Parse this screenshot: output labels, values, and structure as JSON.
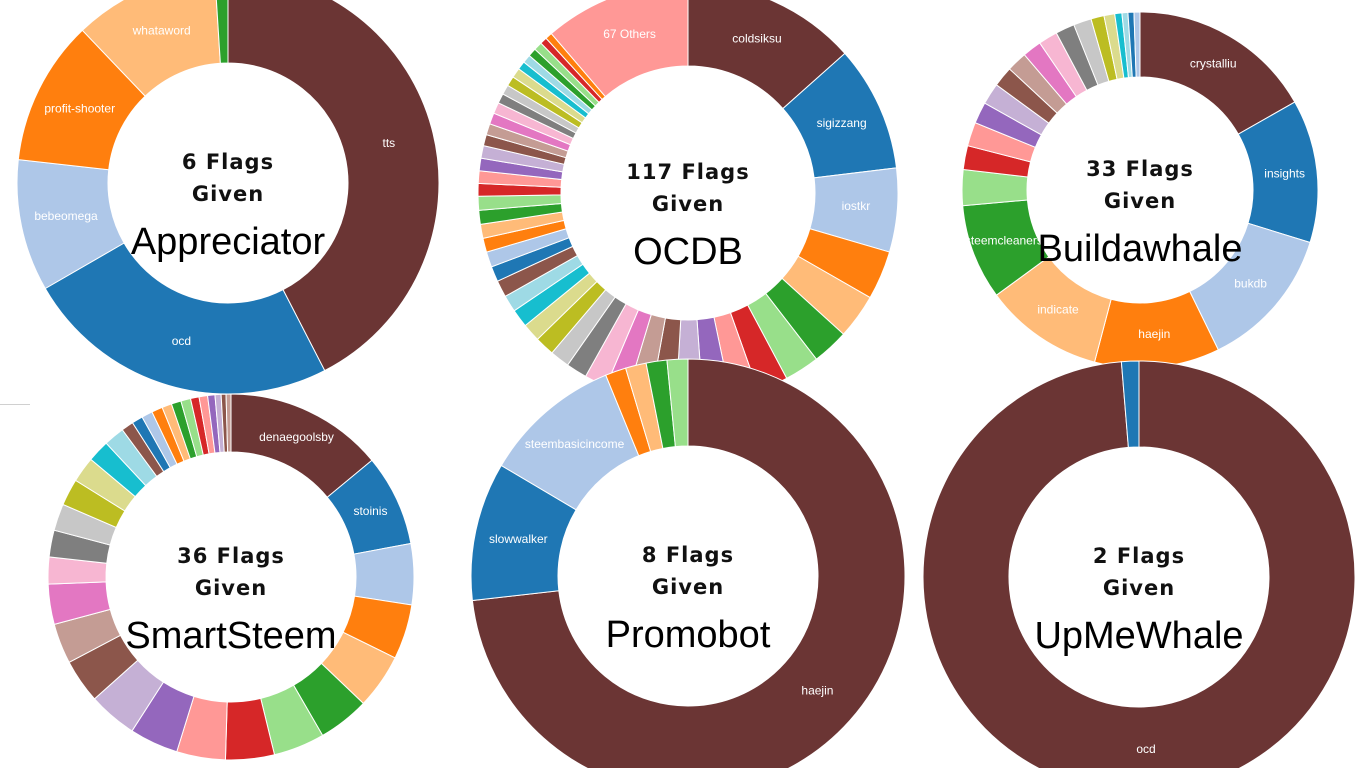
{
  "palette": [
    "#1f77b4",
    "#aec7e8",
    "#ff7f0e",
    "#ffbb78",
    "#2ca02c",
    "#98df8a",
    "#d62728",
    "#ff9896",
    "#9467bd",
    "#c5b0d5",
    "#8c564b",
    "#c49c94",
    "#e377c2",
    "#f7b6d2",
    "#7f7f7f",
    "#c7c7c7",
    "#bcbd22",
    "#dbdb8d",
    "#17becf",
    "#9edae5"
  ],
  "chart_data": [
    {
      "type": "pie",
      "id": "appreciator",
      "center_line1": "6 Flags",
      "center_line2": "Given",
      "center_name": "Appreciator",
      "slices": [
        {
          "label": "tts",
          "value": 42.0,
          "color": "#6b3534"
        },
        {
          "label": "ocd",
          "value": 24.0,
          "color": "#1f77b4"
        },
        {
          "label": "bebeomega",
          "value": 10.0,
          "color": "#aec7e8"
        },
        {
          "label": "profit-shooter",
          "value": 11.0,
          "color": "#ff7f0e"
        },
        {
          "label": "whataword",
          "value": 11.0,
          "color": "#ffbb78"
        },
        {
          "label": "",
          "value": 1.0,
          "color": "#2ca02c"
        }
      ]
    },
    {
      "type": "pie",
      "id": "ocdb",
      "center_line1": "117 Flags",
      "center_line2": "Given",
      "center_name": "OCDB",
      "slices": [
        {
          "label": "coldsiksu",
          "value": 12.5,
          "color": "#6b3534"
        },
        {
          "label": "sigizzang",
          "value": 9.0,
          "color": "#1f77b4"
        },
        {
          "label": "iostkr",
          "value": 6.0,
          "color": "#aec7e8"
        },
        {
          "label": "",
          "value": 3.5,
          "color": "#ff7f0e"
        },
        {
          "label": "",
          "value": 3.2,
          "color": "#ffbb78"
        },
        {
          "label": "",
          "value": 2.6,
          "color": "#2ca02c"
        },
        {
          "label": "",
          "value": 2.5,
          "color": "#98df8a"
        },
        {
          "label": "",
          "value": 2.2,
          "color": "#d62728"
        },
        {
          "label": "",
          "value": 2.0,
          "color": "#ff9896"
        },
        {
          "label": "",
          "value": 2.0,
          "color": "#9467bd"
        },
        {
          "label": "",
          "value": 1.9,
          "color": "#c5b0d5"
        },
        {
          "label": "",
          "value": 1.8,
          "color": "#8c564b"
        },
        {
          "label": "",
          "value": 1.7,
          "color": "#c49c94"
        },
        {
          "label": "",
          "value": 1.6,
          "color": "#e377c2"
        },
        {
          "label": "",
          "value": 1.6,
          "color": "#f7b6d2"
        },
        {
          "label": "",
          "value": 1.5,
          "color": "#7f7f7f"
        },
        {
          "label": "",
          "value": 1.4,
          "color": "#c7c7c7"
        },
        {
          "label": "",
          "value": 1.4,
          "color": "#bcbd22"
        },
        {
          "label": "",
          "value": 1.3,
          "color": "#dbdb8d"
        },
        {
          "label": "",
          "value": 1.3,
          "color": "#17becf"
        },
        {
          "label": "",
          "value": 1.2,
          "color": "#9edae5"
        },
        {
          "label": "",
          "value": 1.2,
          "color": "#8c564b"
        },
        {
          "label": "",
          "value": 1.1,
          "color": "#1f77b4"
        },
        {
          "label": "",
          "value": 1.1,
          "color": "#aec7e8"
        },
        {
          "label": "",
          "value": 1.0,
          "color": "#ff7f0e"
        },
        {
          "label": "",
          "value": 1.0,
          "color": "#ffbb78"
        },
        {
          "label": "",
          "value": 1.0,
          "color": "#2ca02c"
        },
        {
          "label": "",
          "value": 1.0,
          "color": "#98df8a"
        },
        {
          "label": "",
          "value": 0.9,
          "color": "#d62728"
        },
        {
          "label": "",
          "value": 0.9,
          "color": "#ff9896"
        },
        {
          "label": "",
          "value": 0.9,
          "color": "#9467bd"
        },
        {
          "label": "",
          "value": 0.9,
          "color": "#c5b0d5"
        },
        {
          "label": "",
          "value": 0.8,
          "color": "#8c564b"
        },
        {
          "label": "",
          "value": 0.8,
          "color": "#c49c94"
        },
        {
          "label": "",
          "value": 0.8,
          "color": "#e377c2"
        },
        {
          "label": "",
          "value": 0.8,
          "color": "#f7b6d2"
        },
        {
          "label": "",
          "value": 0.7,
          "color": "#7f7f7f"
        },
        {
          "label": "",
          "value": 0.7,
          "color": "#c7c7c7"
        },
        {
          "label": "",
          "value": 0.7,
          "color": "#bcbd22"
        },
        {
          "label": "",
          "value": 0.7,
          "color": "#dbdb8d"
        },
        {
          "label": "",
          "value": 0.6,
          "color": "#17becf"
        },
        {
          "label": "",
          "value": 0.6,
          "color": "#9edae5"
        },
        {
          "label": "",
          "value": 0.6,
          "color": "#2ca02c"
        },
        {
          "label": "",
          "value": 0.6,
          "color": "#98df8a"
        },
        {
          "label": "",
          "value": 0.5,
          "color": "#d62728"
        },
        {
          "label": "",
          "value": 0.5,
          "color": "#ff7f0e"
        },
        {
          "label": "67 Others",
          "value": 10.5,
          "color": "#ff9896"
        }
      ]
    },
    {
      "type": "pie",
      "id": "buildawhale",
      "center_line1": "33 Flags",
      "center_line2": "Given",
      "center_name": "Buildawhale",
      "slices": [
        {
          "label": "crystalliu",
          "value": 15.5,
          "color": "#6b3534"
        },
        {
          "label": "insights",
          "value": 12.0,
          "color": "#1f77b4"
        },
        {
          "label": "bukdb",
          "value": 12.0,
          "color": "#aec7e8"
        },
        {
          "label": "haejin",
          "value": 10.5,
          "color": "#ff7f0e"
        },
        {
          "label": "indicate",
          "value": 10.0,
          "color": "#ffbb78"
        },
        {
          "label": "steemcleaners",
          "value": 8.0,
          "color": "#2ca02c"
        },
        {
          "label": "",
          "value": 3.0,
          "color": "#98df8a"
        },
        {
          "label": "",
          "value": 2.0,
          "color": "#d62728"
        },
        {
          "label": "",
          "value": 2.0,
          "color": "#ff9896"
        },
        {
          "label": "",
          "value": 1.8,
          "color": "#9467bd"
        },
        {
          "label": "",
          "value": 1.8,
          "color": "#c5b0d5"
        },
        {
          "label": "",
          "value": 1.7,
          "color": "#8c564b"
        },
        {
          "label": "",
          "value": 1.7,
          "color": "#c49c94"
        },
        {
          "label": "",
          "value": 1.6,
          "color": "#e377c2"
        },
        {
          "label": "",
          "value": 1.6,
          "color": "#f7b6d2"
        },
        {
          "label": "",
          "value": 1.6,
          "color": "#7f7f7f"
        },
        {
          "label": "",
          "value": 1.5,
          "color": "#c7c7c7"
        },
        {
          "label": "",
          "value": 1.1,
          "color": "#bcbd22"
        },
        {
          "label": "",
          "value": 0.9,
          "color": "#dbdb8d"
        },
        {
          "label": "",
          "value": 0.6,
          "color": "#17becf"
        },
        {
          "label": "",
          "value": 0.5,
          "color": "#9edae5"
        },
        {
          "label": "",
          "value": 0.5,
          "color": "#1f77b4"
        },
        {
          "label": "",
          "value": 0.5,
          "color": "#aec7e8"
        }
      ]
    },
    {
      "type": "pie",
      "id": "smartsteem",
      "center_line1": "36 Flags",
      "center_line2": "Given",
      "center_name": "SmartSteem",
      "slices": [
        {
          "label": "denaegoolsby",
          "value": 13.0,
          "color": "#6b3534"
        },
        {
          "label": "stoinis",
          "value": 7.5,
          "color": "#1f77b4"
        },
        {
          "label": "",
          "value": 5.0,
          "color": "#aec7e8"
        },
        {
          "label": "",
          "value": 4.5,
          "color": "#ff7f0e"
        },
        {
          "label": "",
          "value": 4.5,
          "color": "#ffbb78"
        },
        {
          "label": "",
          "value": 4.2,
          "color": "#2ca02c"
        },
        {
          "label": "",
          "value": 4.2,
          "color": "#98df8a"
        },
        {
          "label": "",
          "value": 4.0,
          "color": "#d62728"
        },
        {
          "label": "",
          "value": 4.0,
          "color": "#ff9896"
        },
        {
          "label": "",
          "value": 4.0,
          "color": "#9467bd"
        },
        {
          "label": "",
          "value": 4.0,
          "color": "#c5b0d5"
        },
        {
          "label": "",
          "value": 3.6,
          "color": "#8c564b"
        },
        {
          "label": "",
          "value": 3.3,
          "color": "#c49c94"
        },
        {
          "label": "",
          "value": 3.3,
          "color": "#e377c2"
        },
        {
          "label": "",
          "value": 2.2,
          "color": "#f7b6d2"
        },
        {
          "label": "",
          "value": 2.2,
          "color": "#7f7f7f"
        },
        {
          "label": "",
          "value": 2.2,
          "color": "#c7c7c7"
        },
        {
          "label": "",
          "value": 2.2,
          "color": "#bcbd22"
        },
        {
          "label": "",
          "value": 2.1,
          "color": "#dbdb8d"
        },
        {
          "label": "",
          "value": 1.8,
          "color": "#17becf"
        },
        {
          "label": "",
          "value": 1.7,
          "color": "#9edae5"
        },
        {
          "label": "",
          "value": 1.0,
          "color": "#8c564b"
        },
        {
          "label": "",
          "value": 0.9,
          "color": "#1f77b4"
        },
        {
          "label": "",
          "value": 0.9,
          "color": "#aec7e8"
        },
        {
          "label": "",
          "value": 0.9,
          "color": "#ff7f0e"
        },
        {
          "label": "",
          "value": 0.8,
          "color": "#ffbb78"
        },
        {
          "label": "",
          "value": 0.8,
          "color": "#2ca02c"
        },
        {
          "label": "",
          "value": 0.8,
          "color": "#98df8a"
        },
        {
          "label": "",
          "value": 0.7,
          "color": "#d62728"
        },
        {
          "label": "",
          "value": 0.7,
          "color": "#ff9896"
        },
        {
          "label": "",
          "value": 0.6,
          "color": "#9467bd"
        },
        {
          "label": "",
          "value": 0.5,
          "color": "#c5b0d5"
        },
        {
          "label": "",
          "value": 0.4,
          "color": "#8c564b"
        },
        {
          "label": "",
          "value": 0.4,
          "color": "#c49c94"
        }
      ]
    },
    {
      "type": "pie",
      "id": "promobot",
      "center_line1": "8 Flags",
      "center_line2": "Given",
      "center_name": "Promobot",
      "slices": [
        {
          "label": "haejin",
          "value": 71.0,
          "color": "#6b3534"
        },
        {
          "label": "slowwalker",
          "value": 10.0,
          "color": "#1f77b4"
        },
        {
          "label": "steembasicincome",
          "value": 10.0,
          "color": "#aec7e8"
        },
        {
          "label": "",
          "value": 1.5,
          "color": "#ff7f0e"
        },
        {
          "label": "",
          "value": 1.5,
          "color": "#ffbb78"
        },
        {
          "label": "",
          "value": 1.5,
          "color": "#2ca02c"
        },
        {
          "label": "",
          "value": 1.5,
          "color": "#98df8a"
        }
      ]
    },
    {
      "type": "pie",
      "id": "upmewhale",
      "center_line1": "2 Flags",
      "center_line2": "Given",
      "center_name": "UpMeWhale",
      "slices": [
        {
          "label": "ocd",
          "value": 98.7,
          "color": "#6b3534"
        },
        {
          "label": "",
          "value": 1.3,
          "color": "#1f77b4"
        }
      ]
    }
  ]
}
